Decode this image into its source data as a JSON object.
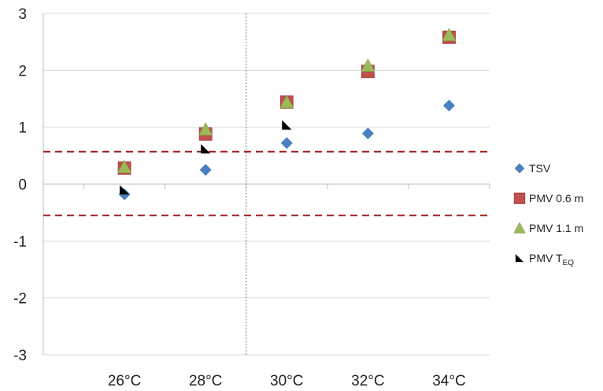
{
  "chart_data": {
    "type": "scatter",
    "categories": [
      "26°C",
      "28°C",
      "30°C",
      "32°C",
      "34°C"
    ],
    "ylim": [
      -3,
      3
    ],
    "yticks": [
      "3",
      "2",
      "1",
      "0",
      "-1",
      "-2",
      "-3"
    ],
    "grid": true,
    "legend_position": "right",
    "series": [
      {
        "name": "TSV",
        "marker": "diamond",
        "color": "#4a7fc1",
        "values": [
          -0.18,
          0.25,
          0.72,
          0.89,
          1.38
        ]
      },
      {
        "name": "PMV 0.6 m",
        "marker": "square",
        "color": "#c0504d",
        "values": [
          0.28,
          0.88,
          1.44,
          1.98,
          2.58
        ]
      },
      {
        "name": "PMV 1.1 m",
        "marker": "triangle",
        "color": "#9bbb59",
        "values": [
          0.3,
          0.96,
          1.44,
          2.08,
          2.62
        ]
      },
      {
        "name": "PMV T",
        "name_sub": "EQ",
        "marker": "corner",
        "color": "#000000",
        "values": [
          -0.1,
          0.62,
          1.04,
          null,
          null
        ]
      }
    ],
    "reference_lines": {
      "values": [
        0.57,
        -0.55
      ],
      "color": "#9b1c1c",
      "style": "dashed"
    },
    "vertical_divider": {
      "between": [
        "28°C",
        "30°C"
      ],
      "style": "dotted"
    }
  }
}
